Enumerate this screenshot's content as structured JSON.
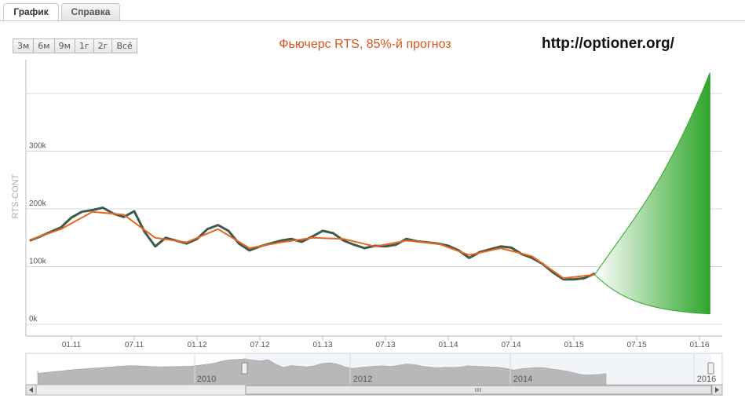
{
  "tabs": [
    {
      "label": "График",
      "active": true
    },
    {
      "label": "Справка",
      "active": false
    }
  ],
  "range_buttons": [
    "3м",
    "6м",
    "9м",
    "1г",
    "2г",
    "Всё"
  ],
  "url_text": "http://optioner.org/",
  "colors": {
    "title": "#d9531e",
    "price": "#3d5a4a",
    "average": "#e8661f",
    "forecast": "#2ea52a"
  },
  "chart_data": {
    "type": "line",
    "title": "Фьючерс RTS, 85%-й прогноз",
    "ylabel": "RTS-CONT",
    "xlabel": "",
    "y_ticks": [
      "0k",
      "100k",
      "200k",
      "300k"
    ],
    "x_ticks": [
      "01.11",
      "07.11",
      "01.12",
      "07.12",
      "01.13",
      "07.13",
      "01.14",
      "07.14",
      "01.15",
      "07.15",
      "01.16"
    ],
    "ylim": [
      -5000,
      400000
    ],
    "grid": true,
    "series": [
      {
        "x": [
          "2010-09",
          "2010-10",
          "2010-11",
          "2010-12",
          "2011-01",
          "2011-02",
          "2011-03",
          "2011-04",
          "2011-05",
          "2011-06",
          "2011-07",
          "2011-08",
          "2011-09",
          "2011-10",
          "2011-11",
          "2011-12",
          "2012-01",
          "2012-02",
          "2012-03",
          "2012-04",
          "2012-05",
          "2012-06",
          "2012-07",
          "2012-08",
          "2012-09",
          "2012-10",
          "2012-11",
          "2012-12",
          "2013-01",
          "2013-02",
          "2013-03",
          "2013-04",
          "2013-05",
          "2013-06",
          "2013-07",
          "2013-08",
          "2013-09",
          "2013-10",
          "2013-11",
          "2013-12",
          "2014-01",
          "2014-02",
          "2014-03",
          "2014-04",
          "2014-05",
          "2014-06",
          "2014-07",
          "2014-08",
          "2014-09",
          "2014-10",
          "2014-11",
          "2014-12",
          "2015-01",
          "2015-02",
          "2015-03"
        ],
        "values": [
          145000,
          152000,
          160000,
          168000,
          185000,
          195000,
          198000,
          202000,
          192000,
          186000,
          196000,
          160000,
          135000,
          150000,
          145000,
          140000,
          148000,
          165000,
          172000,
          162000,
          140000,
          128000,
          135000,
          140000,
          145000,
          148000,
          143000,
          152000,
          162000,
          158000,
          145000,
          138000,
          132000,
          136000,
          135000,
          138000,
          148000,
          144000,
          142000,
          140000,
          136000,
          128000,
          115000,
          125000,
          130000,
          135000,
          133000,
          122000,
          115000,
          105000,
          90000,
          78000,
          78000,
          80000,
          88000
        ]
      },
      {
        "x": [
          "2010-09",
          "2010-12",
          "2011-03",
          "2011-06",
          "2011-09",
          "2011-12",
          "2012-03",
          "2012-06",
          "2012-09",
          "2012-12",
          "2013-03",
          "2013-06",
          "2013-09",
          "2013-12",
          "2014-03",
          "2014-06",
          "2014-09",
          "2014-12",
          "2015-03"
        ],
        "values": [
          146000,
          165000,
          195000,
          190000,
          150000,
          142000,
          165000,
          132000,
          142000,
          150000,
          148000,
          135000,
          145000,
          140000,
          120000,
          132000,
          118000,
          80000,
          86000
        ]
      }
    ],
    "forecast": {
      "start": [
        "2015-03",
        86000
      ],
      "end_x": "2016-02",
      "upper_end": 436000,
      "lower_end": 18000
    }
  }
}
